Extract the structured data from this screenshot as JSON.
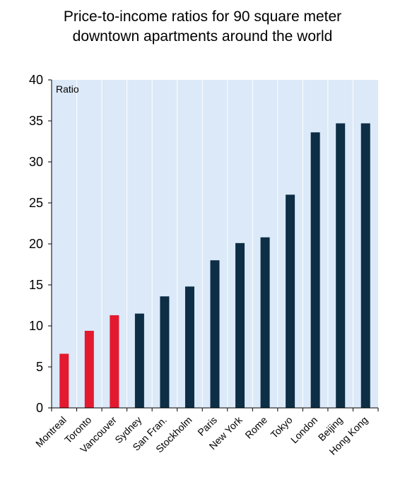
{
  "chart_data": {
    "type": "bar",
    "title_lines": [
      "Price-to-income ratios for 90 square meter",
      "downtown apartments around the world"
    ],
    "ylabel": "Ratio",
    "xlabel": "",
    "ylim": [
      0,
      40
    ],
    "yticks": [
      "0",
      "5",
      "10",
      "15",
      "20",
      "25",
      "30",
      "35",
      "40"
    ],
    "ytick_values": [
      0,
      5,
      10,
      15,
      20,
      25,
      30,
      35,
      40
    ],
    "grid": "vertical",
    "categories": [
      "Montreal",
      "Toronto",
      "Vancouver",
      "Sydney",
      "San Fran.",
      "Stockholm",
      "Paris",
      "New York",
      "Rome",
      "Tokyo",
      "London",
      "Beijing",
      "Hong Kong"
    ],
    "values": [
      6.6,
      9.4,
      11.3,
      11.5,
      13.6,
      14.8,
      18.0,
      20.1,
      20.8,
      26.0,
      33.6,
      34.7,
      34.7
    ],
    "colors": [
      "#e3192f",
      "#e3192f",
      "#e3192f",
      "#0d2e45",
      "#0d2e45",
      "#0d2e45",
      "#0d2e45",
      "#0d2e45",
      "#0d2e45",
      "#0d2e45",
      "#0d2e45",
      "#0d2e45",
      "#0d2e45"
    ],
    "plot_background": "#dbe9f8",
    "grid_color": "#ffffff"
  }
}
